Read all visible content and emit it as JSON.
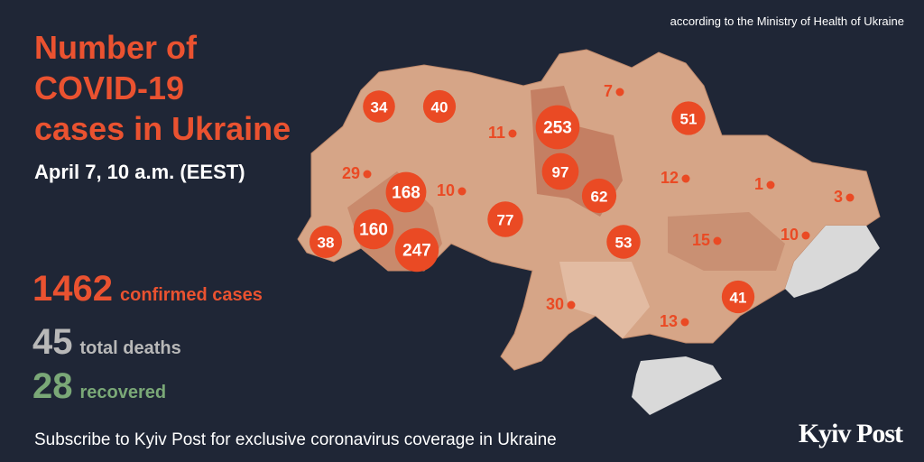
{
  "source": "according to the Ministry of Health of Ukraine",
  "title_lines": [
    "Number of",
    "COVID-19",
    "cases in Ukraine"
  ],
  "date": "April 7, 10 a.m. (EEST)",
  "stats": [
    {
      "value": 1462,
      "label": "confirmed cases",
      "color": "#ea5230"
    },
    {
      "value": 45,
      "label": "total deaths",
      "color": "#b8b8b8"
    },
    {
      "value": 28,
      "label": "recovered",
      "color": "#7aa877"
    }
  ],
  "regions": [
    34,
    40,
    11,
    253,
    7,
    51,
    29,
    168,
    10,
    97,
    12,
    1,
    3,
    62,
    77,
    160,
    247,
    38,
    53,
    15,
    10,
    41,
    30,
    13
  ],
  "footer": "Subscribe to Kyiv Post for exclusive coronavirus coverage in Ukraine",
  "logo": "Kyiv Post"
}
